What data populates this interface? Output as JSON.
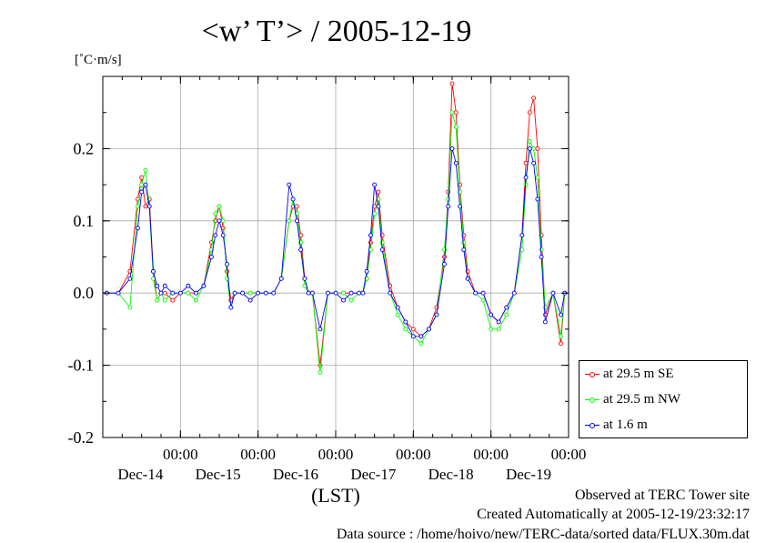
{
  "chart_data": {
    "type": "line",
    "title": "<w’ T’> / 2005-12-19",
    "unit_label": "[˚C·m/s]",
    "xlabel": "(LST)",
    "ylim": [
      -0.2,
      0.3
    ],
    "y_ticks": [
      {
        "value": 0.2,
        "label": "0.2"
      },
      {
        "value": 0.1,
        "label": "0.1"
      },
      {
        "value": 0.0,
        "label": "0.0"
      },
      {
        "value": -0.1,
        "label": "-0.1"
      },
      {
        "value": -0.2,
        "label": "-0.2"
      }
    ],
    "x_range_days": [
      0,
      6
    ],
    "x_ticks": [
      {
        "day": 1,
        "time": "00:00",
        "date": "Dec-14"
      },
      {
        "day": 2,
        "time": "00:00",
        "date": "Dec-15"
      },
      {
        "day": 3,
        "time": "00:00",
        "date": "Dec-16"
      },
      {
        "day": 4,
        "time": "00:00",
        "date": "Dec-17"
      },
      {
        "day": 5,
        "time": "00:00",
        "date": "Dec-18"
      },
      {
        "day": 6,
        "time": "00:00",
        "date": "Dec-19"
      }
    ],
    "grid": true,
    "legend_position": "bottom-right, outside plot",
    "series": [
      {
        "name": "at 29.5 m SE",
        "color": "#ff0000",
        "x": [
          0.05,
          0.2,
          0.35,
          0.45,
          0.5,
          0.55,
          0.6,
          0.65,
          0.7,
          0.75,
          0.8,
          0.9,
          1.0,
          1.1,
          1.2,
          1.3,
          1.4,
          1.45,
          1.5,
          1.55,
          1.6,
          1.65,
          1.7,
          1.8,
          1.9,
          2.0,
          2.1,
          2.2,
          2.3,
          2.4,
          2.45,
          2.5,
          2.55,
          2.6,
          2.65,
          2.7,
          2.8,
          2.9,
          3.0,
          3.1,
          3.2,
          3.3,
          3.35,
          3.4,
          3.45,
          3.5,
          3.55,
          3.6,
          3.7,
          3.8,
          3.9,
          4.0,
          4.1,
          4.2,
          4.3,
          4.4,
          4.45,
          4.5,
          4.55,
          4.6,
          4.65,
          4.7,
          4.8,
          4.9,
          5.0,
          5.1,
          5.2,
          5.3,
          5.4,
          5.45,
          5.5,
          5.55,
          5.6,
          5.65,
          5.7,
          5.8,
          5.9,
          5.95
        ],
        "values": [
          0.0,
          0.0,
          0.03,
          0.13,
          0.16,
          0.12,
          0.13,
          0.03,
          -0.01,
          0.0,
          0.0,
          -0.01,
          0.0,
          0.0,
          0.0,
          0.01,
          0.07,
          0.1,
          0.12,
          0.09,
          0.03,
          -0.01,
          0.0,
          0.0,
          0.0,
          0.0,
          0.0,
          0.0,
          0.02,
          0.1,
          0.12,
          0.12,
          0.08,
          0.02,
          0.0,
          0.0,
          -0.1,
          0.0,
          0.0,
          0.0,
          0.0,
          0.0,
          0.0,
          0.02,
          0.07,
          0.12,
          0.14,
          0.08,
          0.01,
          -0.02,
          -0.04,
          -0.05,
          -0.06,
          -0.05,
          -0.02,
          0.05,
          0.14,
          0.29,
          0.25,
          0.15,
          0.08,
          0.03,
          0.0,
          0.0,
          -0.03,
          -0.04,
          -0.02,
          0.0,
          0.08,
          0.18,
          0.25,
          0.27,
          0.2,
          0.08,
          -0.03,
          0.0,
          -0.07,
          0.0
        ]
      },
      {
        "name": "at 29.5 m NW",
        "color": "#00ff00",
        "x": [
          0.05,
          0.2,
          0.35,
          0.45,
          0.5,
          0.55,
          0.6,
          0.65,
          0.7,
          0.75,
          0.8,
          0.9,
          1.0,
          1.1,
          1.2,
          1.3,
          1.4,
          1.45,
          1.5,
          1.55,
          1.6,
          1.65,
          1.7,
          1.8,
          1.9,
          2.0,
          2.1,
          2.2,
          2.3,
          2.4,
          2.45,
          2.5,
          2.55,
          2.6,
          2.65,
          2.7,
          2.8,
          2.9,
          3.0,
          3.1,
          3.2,
          3.3,
          3.35,
          3.4,
          3.45,
          3.5,
          3.55,
          3.6,
          3.7,
          3.8,
          3.9,
          4.0,
          4.1,
          4.2,
          4.3,
          4.4,
          4.45,
          4.5,
          4.55,
          4.6,
          4.65,
          4.7,
          4.8,
          4.9,
          5.0,
          5.1,
          5.2,
          5.3,
          5.4,
          5.45,
          5.5,
          5.55,
          5.6,
          5.65,
          5.7,
          5.8,
          5.9,
          5.95
        ],
        "values": [
          0.0,
          0.0,
          -0.02,
          0.12,
          0.15,
          0.17,
          0.12,
          0.02,
          -0.01,
          0.0,
          -0.01,
          0.0,
          0.0,
          0.0,
          -0.01,
          0.01,
          0.06,
          0.11,
          0.12,
          0.1,
          0.02,
          -0.02,
          0.0,
          0.0,
          0.0,
          0.0,
          0.0,
          0.0,
          0.02,
          0.1,
          0.13,
          0.11,
          0.07,
          0.01,
          0.0,
          0.0,
          -0.11,
          0.0,
          0.0,
          0.0,
          -0.01,
          0.0,
          0.0,
          0.02,
          0.06,
          0.11,
          0.13,
          0.07,
          0.0,
          -0.03,
          -0.05,
          -0.06,
          -0.07,
          -0.05,
          -0.03,
          0.06,
          0.13,
          0.25,
          0.23,
          0.14,
          0.07,
          0.02,
          0.0,
          -0.01,
          -0.05,
          -0.05,
          -0.03,
          0.0,
          0.06,
          0.15,
          0.21,
          0.2,
          0.16,
          0.06,
          -0.02,
          0.0,
          -0.06,
          0.0
        ]
      },
      {
        "name": "at 1.6 m",
        "color": "#0000ff",
        "x": [
          0.05,
          0.2,
          0.35,
          0.45,
          0.5,
          0.55,
          0.6,
          0.65,
          0.7,
          0.75,
          0.8,
          0.9,
          1.0,
          1.1,
          1.2,
          1.3,
          1.4,
          1.45,
          1.5,
          1.55,
          1.6,
          1.65,
          1.7,
          1.8,
          1.9,
          2.0,
          2.1,
          2.2,
          2.3,
          2.4,
          2.45,
          2.5,
          2.55,
          2.6,
          2.65,
          2.7,
          2.8,
          2.9,
          3.0,
          3.1,
          3.2,
          3.3,
          3.35,
          3.4,
          3.45,
          3.5,
          3.55,
          3.6,
          3.7,
          3.8,
          3.9,
          4.0,
          4.1,
          4.2,
          4.3,
          4.4,
          4.45,
          4.5,
          4.55,
          4.6,
          4.65,
          4.7,
          4.8,
          4.9,
          5.0,
          5.1,
          5.2,
          5.3,
          5.4,
          5.45,
          5.5,
          5.55,
          5.6,
          5.65,
          5.7,
          5.8,
          5.9,
          5.95
        ],
        "values": [
          0.0,
          0.0,
          0.02,
          0.09,
          0.14,
          0.15,
          0.12,
          0.03,
          0.01,
          0.0,
          0.01,
          0.0,
          0.0,
          0.01,
          0.0,
          0.01,
          0.05,
          0.08,
          0.1,
          0.08,
          0.04,
          -0.02,
          0.0,
          0.0,
          -0.01,
          0.0,
          0.0,
          0.0,
          0.02,
          0.15,
          0.13,
          0.1,
          0.06,
          0.02,
          0.0,
          0.0,
          -0.05,
          0.0,
          0.0,
          -0.01,
          0.0,
          0.0,
          0.0,
          0.03,
          0.08,
          0.15,
          0.12,
          0.06,
          0.0,
          -0.02,
          -0.04,
          -0.06,
          -0.06,
          -0.05,
          -0.03,
          0.04,
          0.12,
          0.2,
          0.18,
          0.12,
          0.06,
          0.02,
          0.0,
          0.0,
          -0.03,
          -0.04,
          -0.02,
          0.0,
          0.08,
          0.16,
          0.2,
          0.18,
          0.13,
          0.05,
          -0.04,
          0.0,
          -0.03,
          0.0
        ]
      }
    ]
  },
  "footer": {
    "line1": "Observed at TERC Tower site",
    "line2": "Created Automatically at 2005-12-19/23:32:17",
    "line3": "Data source : /home/hoivo/new/TERC-data/sorted data/FLUX.30m.dat"
  }
}
